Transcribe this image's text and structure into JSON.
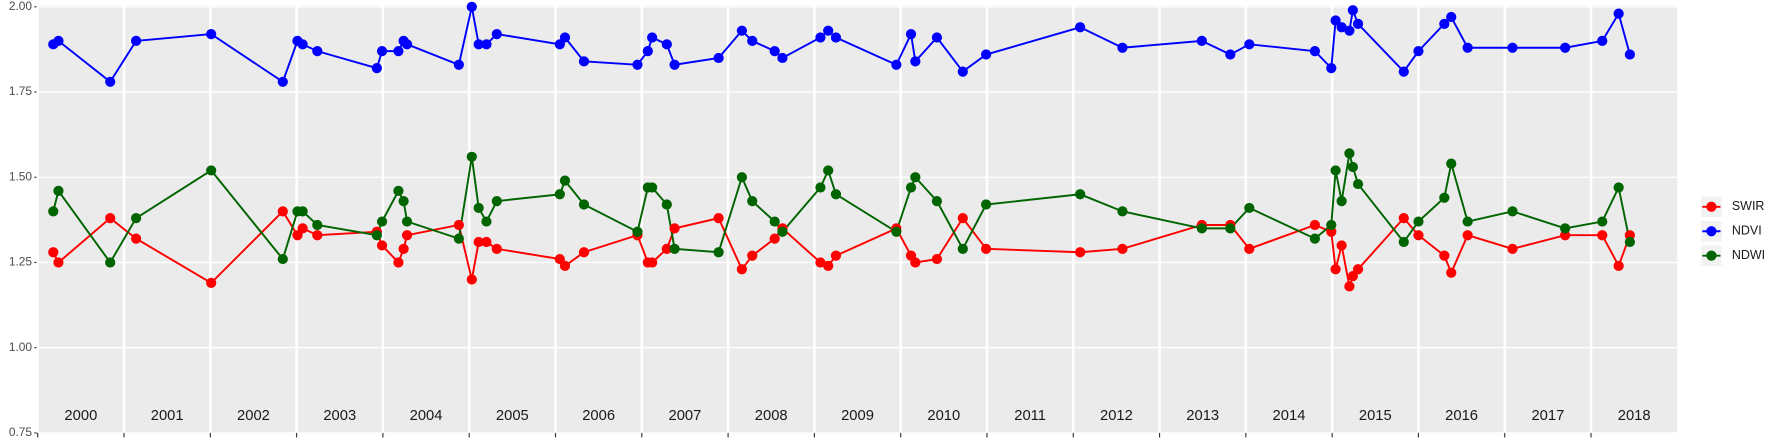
{
  "chart_data": {
    "type": "line",
    "x": [
      2000.18,
      2000.24,
      2000.84,
      2001.14,
      2002.01,
      2002.84,
      2003.01,
      2003.07,
      2003.24,
      2003.93,
      2003.99,
      2004.18,
      2004.24,
      2004.28,
      2004.88,
      2005.03,
      2005.11,
      2005.2,
      2005.32,
      2006.05,
      2006.11,
      2006.33,
      2006.95,
      2007.07,
      2007.12,
      2007.29,
      2007.38,
      2007.89,
      2008.16,
      2008.28,
      2008.54,
      2008.63,
      2009.07,
      2009.16,
      2009.25,
      2009.95,
      2010.12,
      2010.17,
      2010.42,
      2010.72,
      2010.99,
      2012.08,
      2012.57,
      2013.49,
      2013.82,
      2014.04,
      2014.8,
      2014.99,
      2015.04,
      2015.11,
      2015.2,
      2015.24,
      2015.3,
      2015.83,
      2016,
      2016.3,
      2016.38,
      2016.57,
      2017.09,
      2017.7,
      2018.13,
      2018.32,
      2018.45
    ],
    "series": [
      {
        "name": "SWIR",
        "color": "#ff0000",
        "values": [
          1.28,
          1.25,
          1.38,
          1.32,
          1.19,
          1.4,
          1.33,
          1.35,
          1.33,
          1.34,
          1.3,
          1.25,
          1.29,
          1.33,
          1.36,
          1.2,
          1.31,
          1.31,
          1.29,
          1.26,
          1.24,
          1.28,
          1.33,
          1.25,
          1.25,
          1.29,
          1.35,
          1.38,
          1.23,
          1.27,
          1.32,
          1.35,
          1.25,
          1.24,
          1.27,
          1.35,
          1.27,
          1.25,
          1.26,
          1.38,
          1.29,
          1.28,
          1.29,
          1.36,
          1.36,
          1.29,
          1.36,
          1.34,
          1.23,
          1.3,
          1.18,
          1.21,
          1.23,
          1.38,
          1.33,
          1.27,
          1.22,
          1.33,
          1.29,
          1.33,
          1.33,
          1.24,
          1.33
        ]
      },
      {
        "name": "NDVI",
        "color": "#0000ff",
        "values": [
          1.89,
          1.9,
          1.78,
          1.9,
          1.92,
          1.78,
          1.9,
          1.89,
          1.87,
          1.82,
          1.87,
          1.87,
          1.9,
          1.89,
          1.83,
          2.0,
          1.89,
          1.89,
          1.92,
          1.89,
          1.91,
          1.84,
          1.83,
          1.87,
          1.91,
          1.89,
          1.83,
          1.85,
          1.93,
          1.9,
          1.87,
          1.85,
          1.91,
          1.93,
          1.91,
          1.83,
          1.92,
          1.84,
          1.91,
          1.81,
          1.86,
          1.94,
          1.88,
          1.9,
          1.86,
          1.89,
          1.87,
          1.82,
          1.96,
          1.94,
          1.93,
          1.99,
          1.95,
          1.81,
          1.87,
          1.95,
          1.97,
          1.88,
          1.88,
          1.88,
          1.9,
          1.98,
          1.86
        ]
      },
      {
        "name": "NDWI",
        "color": "#006400",
        "values": [
          1.4,
          1.46,
          1.25,
          1.38,
          1.52,
          1.26,
          1.4,
          1.4,
          1.36,
          1.33,
          1.37,
          1.46,
          1.43,
          1.37,
          1.32,
          1.56,
          1.41,
          1.37,
          1.43,
          1.45,
          1.49,
          1.42,
          1.34,
          1.47,
          1.47,
          1.42,
          1.29,
          1.28,
          1.5,
          1.43,
          1.37,
          1.34,
          1.47,
          1.52,
          1.45,
          1.34,
          1.47,
          1.5,
          1.43,
          1.29,
          1.42,
          1.45,
          1.4,
          1.35,
          1.35,
          1.41,
          1.32,
          1.36,
          1.52,
          1.43,
          1.57,
          1.53,
          1.48,
          1.31,
          1.37,
          1.44,
          1.54,
          1.37,
          1.4,
          1.35,
          1.37,
          1.47,
          1.31
        ]
      }
    ],
    "xlim": [
      2000,
      2019
    ],
    "xticks": [
      2000,
      2001,
      2002,
      2003,
      2004,
      2005,
      2006,
      2007,
      2008,
      2009,
      2010,
      2011,
      2012,
      2013,
      2014,
      2015,
      2016,
      2017,
      2018
    ],
    "ylim": [
      0.75,
      2.0
    ],
    "yticks": [
      0.75,
      {
        "value": 1.0,
        "label": "1.00"
      },
      1.25,
      {
        "value": 1.5,
        "label": "1.50"
      },
      1.75,
      {
        "value": 2.0,
        "label": "2.00"
      }
    ],
    "grid": true,
    "legend": "right"
  }
}
